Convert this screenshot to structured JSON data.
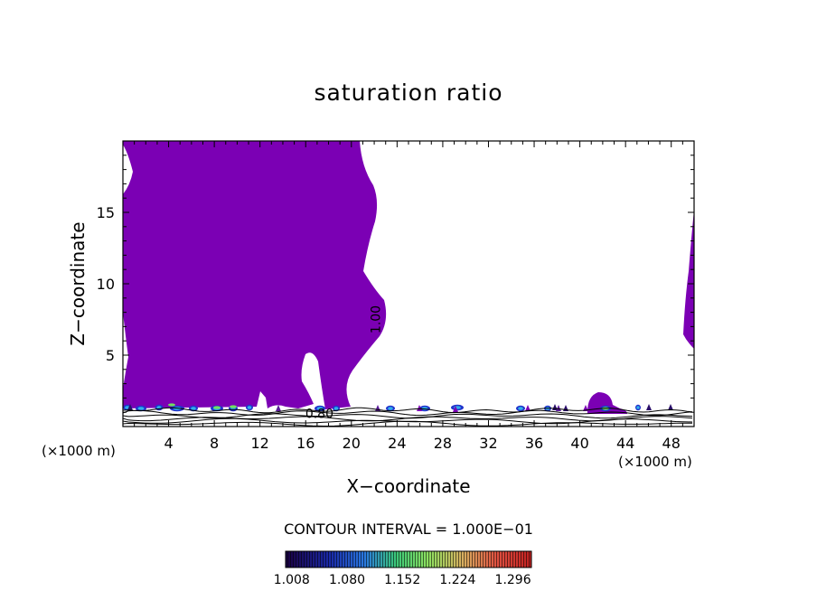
{
  "chart_data": {
    "type": "heatmap",
    "title": "saturation ratio",
    "xlabel": "X−coordinate",
    "ylabel": "Z−coordinate",
    "x_unit_label": "(×1000 m)",
    "xlim": [
      0,
      50
    ],
    "ylim": [
      0,
      20
    ],
    "x_ticks": [
      4,
      8,
      12,
      16,
      20,
      24,
      28,
      32,
      36,
      40,
      44,
      48
    ],
    "y_ticks": [
      5,
      10,
      15
    ],
    "contour_labels": [
      {
        "text": "1.00",
        "x": 22.5,
        "z": 7.5
      },
      {
        "text": "0.80",
        "x": 17.2,
        "z": 0.6
      }
    ],
    "contour_interval": "CONTOUR INTERVAL = 1.000E−01",
    "colorbar": {
      "tick_labels": [
        "1.008",
        "1.080",
        "1.152",
        "1.224",
        "1.296"
      ],
      "min": 1.0,
      "max": 1.32
    },
    "fill_color": "#7b00b4"
  }
}
